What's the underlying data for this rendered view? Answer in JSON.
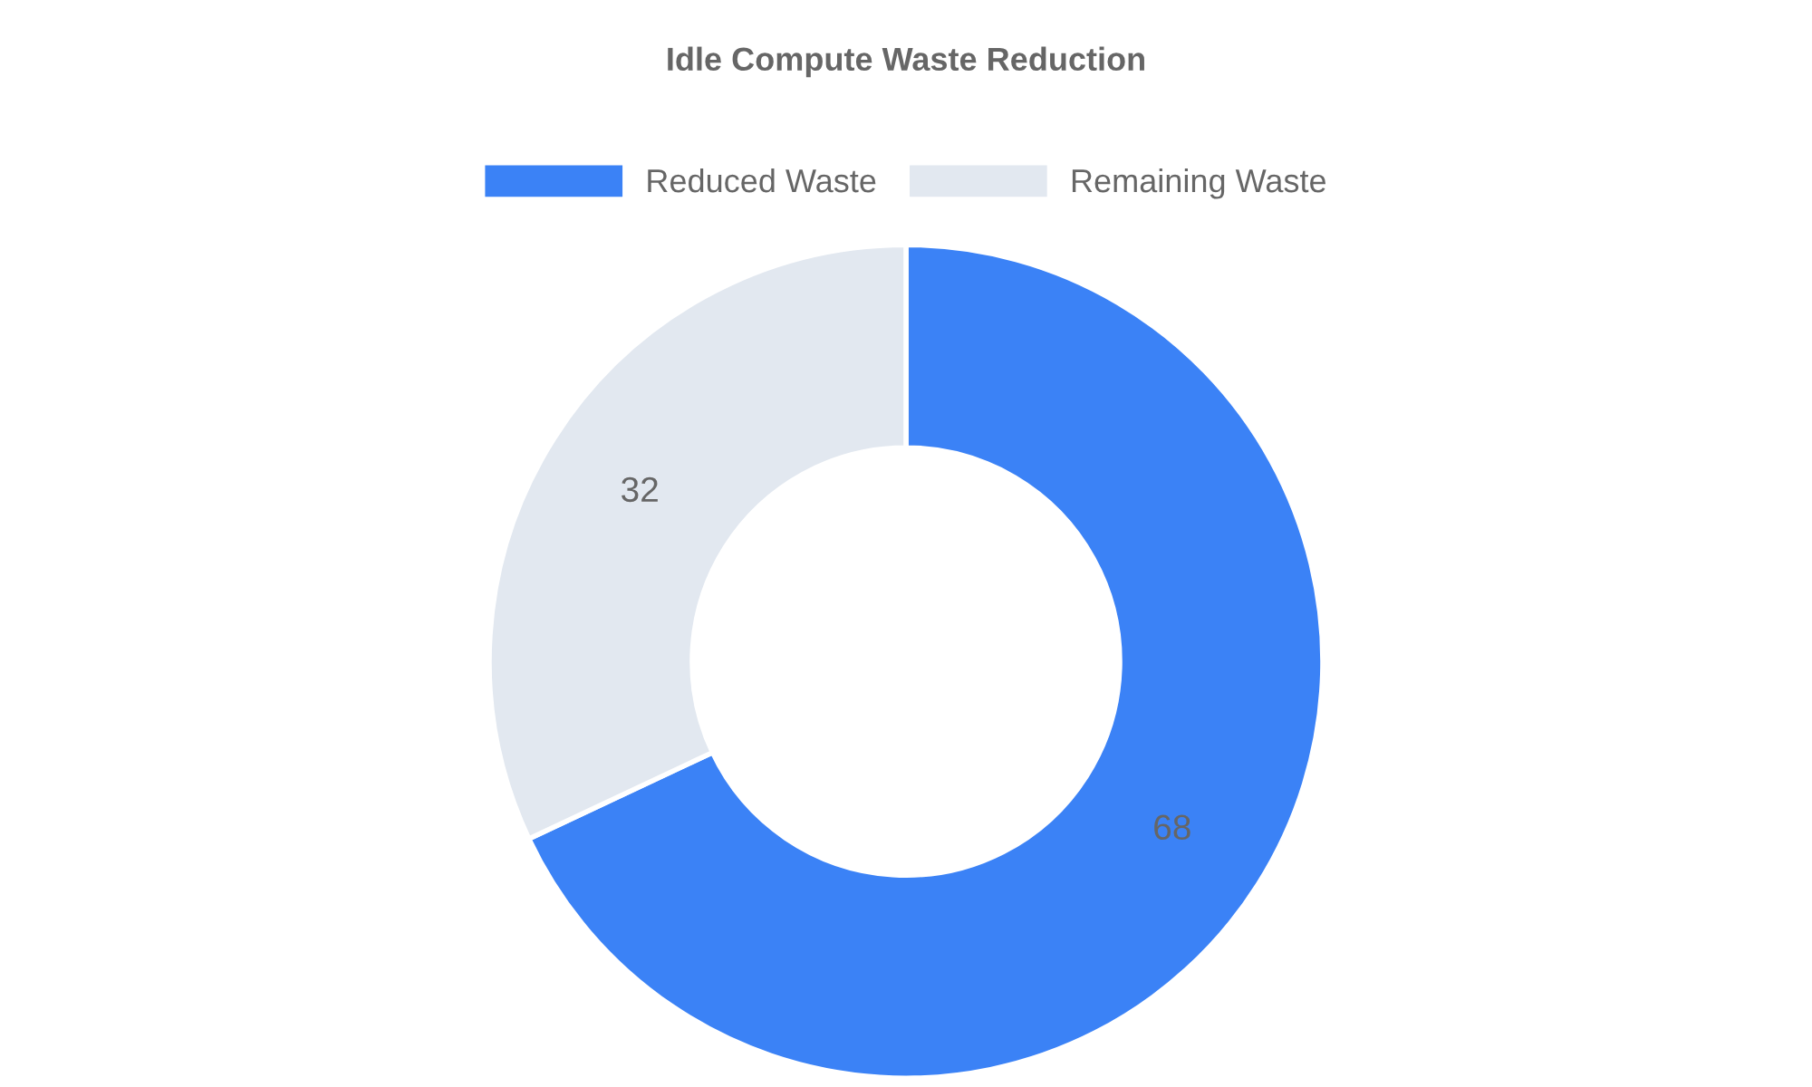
{
  "chart_data": {
    "type": "donut",
    "title": "Idle Compute Waste Reduction",
    "categories": [
      "Reduced Waste",
      "Remaining Waste"
    ],
    "values": [
      68,
      32
    ],
    "colors": [
      "#3b82f6",
      "#e2e8f0"
    ],
    "legend": "top",
    "data_labels": true
  }
}
